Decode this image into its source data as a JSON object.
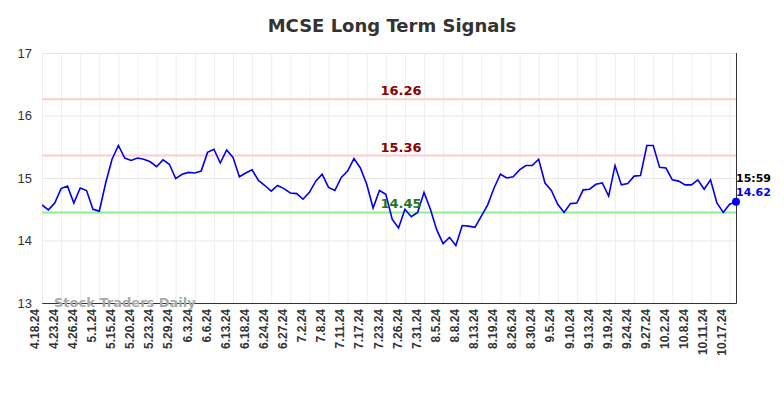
{
  "chart_data": {
    "type": "line",
    "title": "MCSE Long Term Signals",
    "watermark": "Stock Traders Daily",
    "time_label": "15:59",
    "categories": [
      "4.18.24",
      null,
      null,
      "4.23.24",
      null,
      null,
      "4.26.24",
      null,
      null,
      "5.1.24",
      null,
      null,
      "5.15.24",
      null,
      null,
      "5.20.24",
      null,
      null,
      "5.23.24",
      null,
      null,
      "5.29.24",
      null,
      null,
      "6.3.24",
      null,
      null,
      "6.6.24",
      null,
      null,
      "6.13.24",
      null,
      null,
      "6.18.24",
      null,
      null,
      "6.24.24",
      null,
      null,
      "6.27.24",
      null,
      null,
      "7.2.24",
      null,
      null,
      "7.8.24",
      null,
      null,
      "7.11.24",
      null,
      null,
      "7.17.24",
      null,
      null,
      "7.23.24",
      null,
      null,
      "7.26.24",
      null,
      null,
      "7.31.24",
      null,
      null,
      "8.5.24",
      null,
      null,
      "8.8.24",
      null,
      null,
      "8.13.24",
      null,
      null,
      "8.19.24",
      null,
      null,
      "8.26.24",
      null,
      null,
      "8.30.24",
      null,
      null,
      "9.5.24",
      null,
      null,
      "9.10.24",
      null,
      null,
      "9.13.24",
      null,
      null,
      "9.19.24",
      null,
      null,
      "9.24.24",
      null,
      null,
      "9.27.24",
      null,
      null,
      "10.2.24",
      null,
      null,
      "10.8.24",
      null,
      null,
      "10.11.24",
      null,
      null,
      "10.17.24",
      null
    ],
    "series": [
      {
        "name": "MCSE",
        "color": "#0000ee",
        "marker": "last",
        "values": [
          14.57,
          14.49,
          14.6,
          14.83,
          14.87,
          14.6,
          14.84,
          14.8,
          14.5,
          14.47,
          14.92,
          15.3,
          15.52,
          15.32,
          15.28,
          15.32,
          15.3,
          15.26,
          15.18,
          15.29,
          15.22,
          14.99,
          15.06,
          15.09,
          15.08,
          15.11,
          15.41,
          15.46,
          15.24,
          15.45,
          15.33,
          15.02,
          15.08,
          15.13,
          14.96,
          14.88,
          14.79,
          14.88,
          14.83,
          14.76,
          14.75,
          14.66,
          14.77,
          14.95,
          15.06,
          14.85,
          14.8,
          15.01,
          15.11,
          15.31,
          15.16,
          14.9,
          14.52,
          14.8,
          14.74,
          14.34,
          14.2,
          14.5,
          14.38,
          14.45,
          14.77,
          14.5,
          14.17,
          13.95,
          14.05,
          13.92,
          14.24,
          14.23,
          14.21,
          14.39,
          14.57,
          14.84,
          15.06,
          15.0,
          15.02,
          15.13,
          15.2,
          15.2,
          15.3,
          14.92,
          14.8,
          14.58,
          14.45,
          14.59,
          14.6,
          14.81,
          14.82,
          14.9,
          14.92,
          14.71,
          15.2,
          14.89,
          14.91,
          15.03,
          15.04,
          15.52,
          15.52,
          15.17,
          15.16,
          14.97,
          14.95,
          14.89,
          14.89,
          14.97,
          14.82,
          14.97,
          14.6,
          14.45,
          14.58,
          14.62
        ]
      }
    ],
    "reference_lines": [
      {
        "value": 16.26,
        "label": "16.26",
        "color": "#ffcccc",
        "label_color": "#8b0000"
      },
      {
        "value": 15.36,
        "label": "15.36",
        "color": "#ffcccc",
        "label_color": "#8b0000"
      },
      {
        "value": 14.45,
        "label": "14.45",
        "color": "#90ee90",
        "label_color": "#1a7a1a"
      }
    ],
    "ylim": [
      13,
      17
    ],
    "yticks": [
      13,
      14,
      15,
      16,
      17
    ],
    "grid": true
  }
}
